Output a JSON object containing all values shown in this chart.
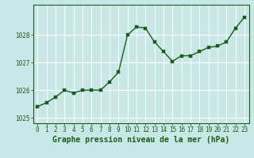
{
  "x": [
    0,
    1,
    2,
    3,
    4,
    5,
    6,
    7,
    8,
    9,
    10,
    11,
    12,
    13,
    14,
    15,
    16,
    17,
    18,
    19,
    20,
    21,
    22,
    23
  ],
  "y": [
    1025.4,
    1025.55,
    1025.75,
    1026.0,
    1025.9,
    1026.0,
    1026.0,
    1026.0,
    1026.3,
    1026.65,
    1028.0,
    1028.3,
    1028.25,
    1027.75,
    1027.4,
    1027.05,
    1027.25,
    1027.25,
    1027.4,
    1027.55,
    1027.6,
    1027.75,
    1028.25,
    1028.65
  ],
  "line_color": "#1a5c1a",
  "marker": "s",
  "marker_size": 2.5,
  "background_color": "#c8e8e8",
  "grid_color": "#ffffff",
  "ylabel_ticks": [
    1025,
    1026,
    1027,
    1028
  ],
  "xlabel_label": "Graphe pression niveau de la mer (hPa)",
  "ylim": [
    1024.8,
    1029.1
  ],
  "xlim": [
    -0.5,
    23.5
  ],
  "xtick_labels": [
    "0",
    "1",
    "2",
    "3",
    "4",
    "5",
    "6",
    "7",
    "8",
    "9",
    "10",
    "11",
    "12",
    "13",
    "14",
    "15",
    "16",
    "17",
    "18",
    "19",
    "20",
    "21",
    "22",
    "23"
  ],
  "xlabel_fontsize": 7.0,
  "tick_fontsize": 5.5,
  "border_color": "#1a5c1a",
  "line_width": 1.0
}
